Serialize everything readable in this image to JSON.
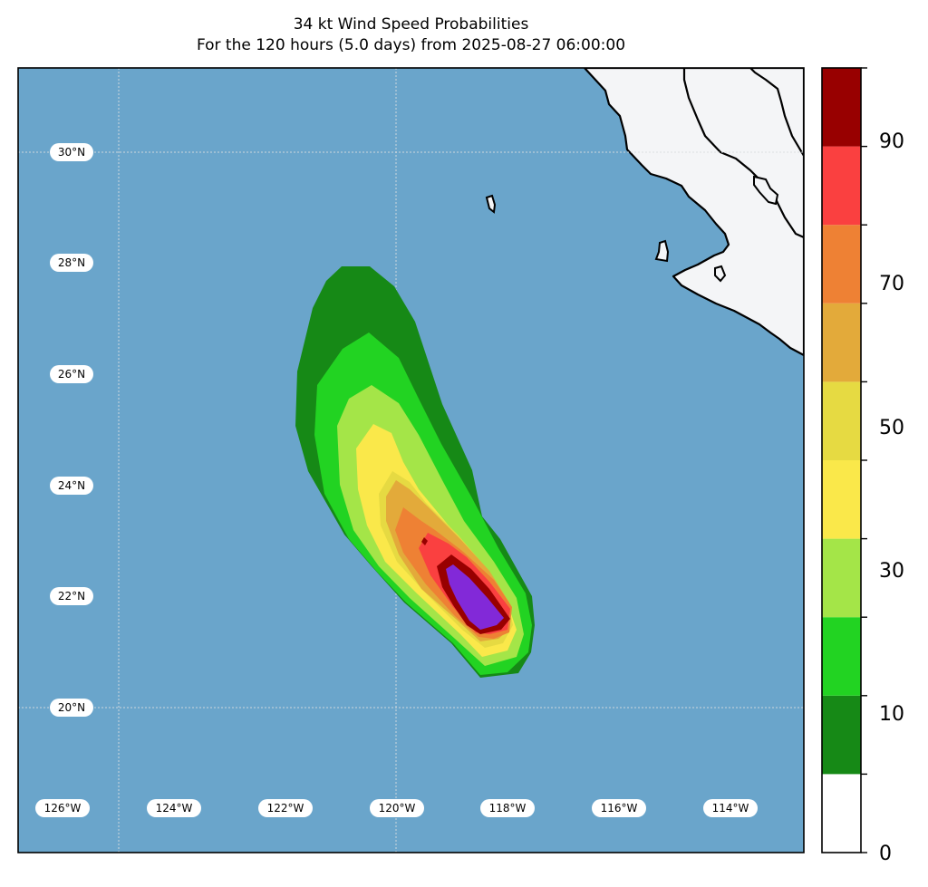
{
  "title": {
    "line1": "34 kt Wind Speed Probabilities",
    "line2": "For the 120 hours (5.0 days) from 2025-08-27 06:00:00"
  },
  "map": {
    "ocean_color": "#6aa5cb",
    "land_color": "#f4f5f7",
    "lat_labels": [
      "30°N",
      "28°N",
      "26°N",
      "24°N",
      "22°N",
      "20°N"
    ],
    "lon_labels": [
      "126°W",
      "124°W",
      "122°W",
      "120°W",
      "118°W",
      "116°W",
      "114°W"
    ]
  },
  "colorbar": {
    "levels": [
      0,
      10,
      20,
      30,
      40,
      50,
      60,
      70,
      80,
      90,
      100
    ],
    "colors": [
      "#ffffff",
      "#168916",
      "#22d322",
      "#a4e548",
      "#fae84a",
      "#e6da42",
      "#e3aa3a",
      "#ee8134",
      "#fa4040",
      "#980000",
      "#8229d8"
    ],
    "tick_labels": [
      "0",
      "10",
      "30",
      "50",
      "70",
      "90"
    ]
  }
}
